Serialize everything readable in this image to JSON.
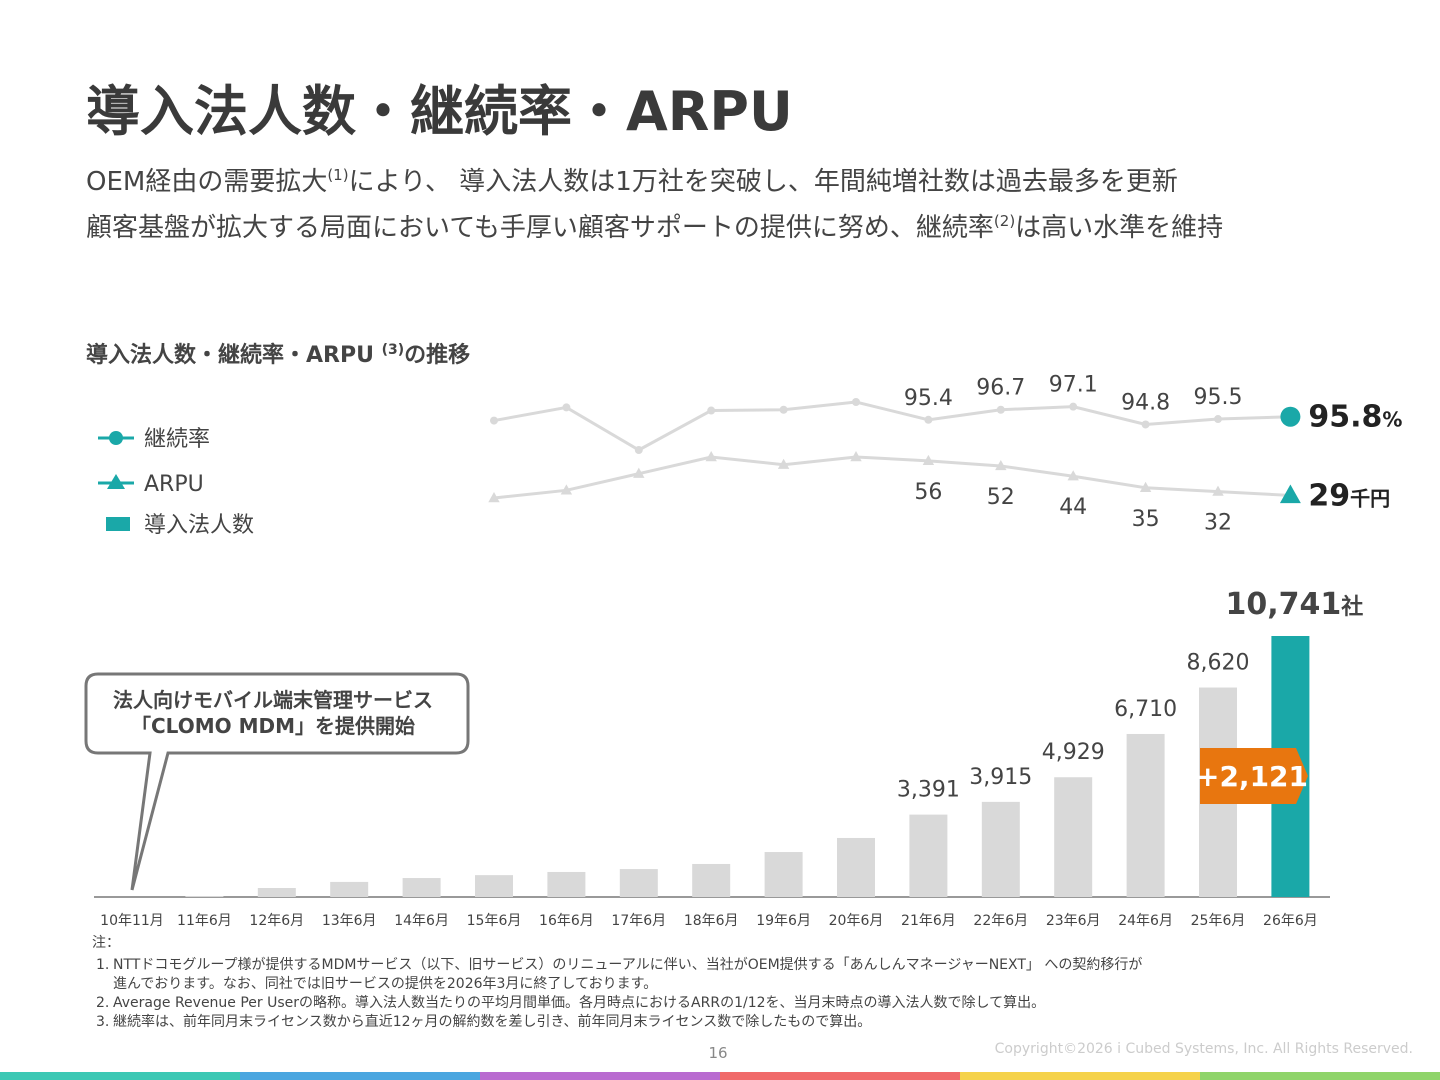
{
  "title": "導入法人数・継続率・ARPU",
  "lead": [
    [
      "OEM経由の需要拡大",
      "(1)",
      "により、 導入法人数は1万社を突破し、年間純増社数は過去最多を更新"
    ],
    [
      "顧客基盤が拡大する局面においても手厚い顧客サポートの提供に努め、継続率",
      "(2)",
      "は高い水準を維持"
    ]
  ],
  "chart_data": {
    "type": "bar",
    "title": [
      "導入法人数・継続率・ARPU ",
      "(3)",
      "の推移"
    ],
    "legend": "top-left",
    "categories": [
      "10年11月",
      "11年6月",
      "12年6月",
      "13年6月",
      "14年6月",
      "15年6月",
      "16年6月",
      "17年6月",
      "18年6月",
      "19年6月",
      "20年6月",
      "21年6月",
      "22年6月",
      "23年6月",
      "24年6月",
      "25年6月",
      "26年6月"
    ],
    "series": [
      {
        "name": "継続率",
        "type": "line",
        "color": "#d9d9d9",
        "marker_color": "#1aa8a8",
        "unit": "%",
        "values": [
          null,
          null,
          null,
          null,
          null,
          95.3,
          97.0,
          91.5,
          96.6,
          96.7,
          97.7,
          95.4,
          96.7,
          97.1,
          94.8,
          95.5,
          95.8
        ],
        "value_labels": [
          null,
          null,
          null,
          null,
          null,
          null,
          null,
          null,
          null,
          null,
          null,
          "95.4",
          "96.7",
          "97.1",
          "94.8",
          "95.5",
          "95.8"
        ]
      },
      {
        "name": "ARPU",
        "type": "line",
        "color": "#d9d9d9",
        "marker_color": "#1aa8a8",
        "unit": "千円",
        "values": [
          null,
          null,
          null,
          null,
          null,
          27,
          33,
          46,
          59,
          53,
          59,
          56,
          52,
          44,
          35,
          32,
          29
        ],
        "value_labels": [
          null,
          null,
          null,
          null,
          null,
          null,
          null,
          null,
          null,
          null,
          null,
          "56",
          "52",
          "44",
          "35",
          "32",
          "29"
        ]
      },
      {
        "name": "導入法人数",
        "type": "bar",
        "color": "#d9d9d9",
        "highlight_color": "#1aa8a8",
        "unit": "社",
        "values": [
          0,
          40,
          370,
          620,
          780,
          900,
          1030,
          1150,
          1360,
          1850,
          2430,
          3391,
          3915,
          4929,
          6710,
          8620,
          10741
        ],
        "value_labels": [
          null,
          null,
          null,
          null,
          null,
          null,
          null,
          null,
          null,
          null,
          null,
          "3,391",
          "3,915",
          "4,929",
          "6,710",
          "8,620",
          "10,741"
        ]
      }
    ],
    "increase_label": "+2,121",
    "callout": [
      "法人向けモバイル端末管理サービス",
      "「CLOMO MDM」を提供開始"
    ]
  },
  "notes": {
    "heading": "注：",
    "items": [
      {
        "num": "1.",
        "lines": [
          "NTTドコモグループ様が提供するMDMサービス（以下、旧サービス）のリニューアルに伴い、当社がOEM提供する「あんしんマネージャーNEXT」 への契約移行が",
          "進んでおります。なお、同社では旧サービスの提供を2026年3月に終了しております。"
        ]
      },
      {
        "num": "2.",
        "lines": [
          "Average Revenue Per Userの略称。導入法人数当たりの平均月間単価。各月時点におけるARRの1/12を、当月末時点の導入法人数で除して算出。"
        ]
      },
      {
        "num": "3.",
        "lines": [
          "継続率は、前年同月末ライセンス数から直近12ヶ月の解約数を差し引き、前年同月末ライセンス数で除したもので算出。"
        ]
      }
    ]
  },
  "page_number": "16",
  "copyright": "Copyright©2026 i Cubed Systems, Inc. All Rights Reserved."
}
